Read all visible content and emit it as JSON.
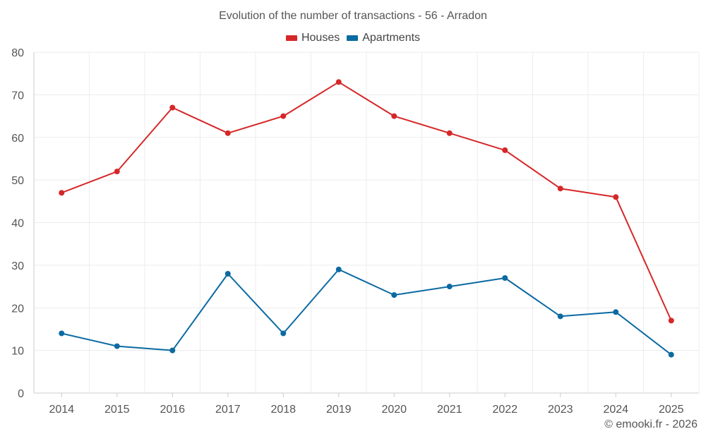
{
  "chart_data": {
    "type": "line",
    "title": "Evolution of the number of transactions - 56 - Arradon",
    "categories": [
      "2014",
      "2015",
      "2016",
      "2017",
      "2018",
      "2019",
      "2020",
      "2021",
      "2022",
      "2023",
      "2024",
      "2025"
    ],
    "series": [
      {
        "name": "Houses",
        "color": "#d62728",
        "values": [
          47,
          52,
          67,
          61,
          65,
          73,
          65,
          61,
          57,
          48,
          46,
          17
        ]
      },
      {
        "name": "Apartments",
        "color": "#0b6aa2",
        "values": [
          14,
          11,
          10,
          28,
          14,
          29,
          23,
          25,
          27,
          18,
          19,
          9
        ]
      }
    ],
    "ylim": [
      0,
      80
    ],
    "yticks": [
      0,
      10,
      20,
      30,
      40,
      50,
      60,
      70,
      80
    ],
    "xlabel": "",
    "ylabel": "",
    "grid": true,
    "legend": "top-center"
  },
  "footer": {
    "credit": "© emooki.fr - 2026"
  }
}
